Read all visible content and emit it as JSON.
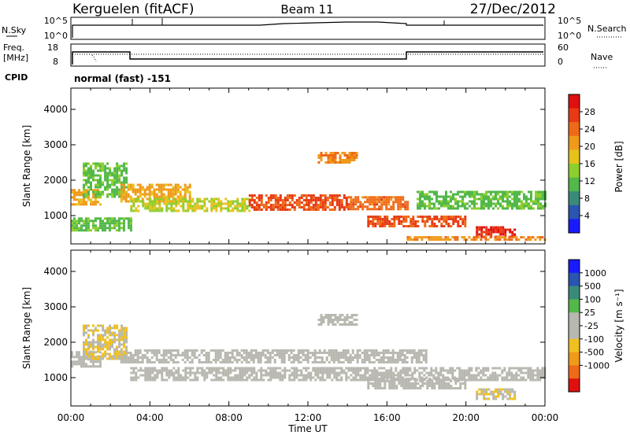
{
  "header": {
    "station": "Kerguelen (fitACF)",
    "beam": "Beam 11",
    "date": "27/Dec/2012"
  },
  "top_panel": {
    "left_label": "N.Sky",
    "right_label": "N.Search",
    "left_ticks": [
      "10^5",
      "10^0"
    ],
    "right_ticks": [
      "10^5",
      "10^0"
    ]
  },
  "freq_panel": {
    "left_label_1": "Freq.",
    "left_label_2": "[MHz]",
    "right_label": "Nave",
    "left_ticks": [
      "18",
      "8"
    ],
    "right_ticks": [
      "60",
      "0"
    ],
    "cpid_label": "CPID",
    "cpid_text": "normal (fast) -151"
  },
  "x_axis": {
    "label": "Time UT",
    "ticks": [
      "00:00",
      "04:00",
      "08:00",
      "12:00",
      "16:00",
      "20:00",
      "00:00"
    ]
  },
  "power_panel": {
    "ylabel": "Slant Range [km]",
    "yticks": [
      "1000",
      "2000",
      "3000",
      "4000"
    ],
    "colorbar_label": "Power [dB]",
    "colorbar_ticks": [
      "4",
      "8",
      "12",
      "16",
      "20",
      "24",
      "28"
    ],
    "colors": [
      "#1a1aff",
      "#2a55b0",
      "#3a8a7a",
      "#52b84a",
      "#8ccf2e",
      "#e6c21a",
      "#f09a1a",
      "#ee6a18",
      "#e83a14",
      "#e01010"
    ]
  },
  "velocity_panel": {
    "ylabel": "Slant Range [km]",
    "yticks": [
      "1000",
      "2000",
      "3000",
      "4000"
    ],
    "colorbar_label": "Velocity [m s⁻¹]",
    "colorbar_ticks": [
      "1000",
      "500",
      "100",
      "25",
      "-25",
      "-100",
      "-500",
      "-1000"
    ],
    "colors": [
      "#1a1aff",
      "#2a55b0",
      "#3a8a7a",
      "#52b84a",
      "#b8b8b0",
      "#b8b8b0",
      "#f0c020",
      "#f09a1a",
      "#ee6a18",
      "#e01010"
    ]
  },
  "chart_data": [
    {
      "type": "heatmap",
      "title": "Power",
      "xlabel": "Time UT",
      "ylabel": "Slant Range [km]",
      "xlim": [
        0,
        24
      ],
      "ylim": [
        200,
        4600
      ],
      "clim": [
        0,
        32
      ],
      "regions": [
        {
          "t0": 0.0,
          "t1": 1.5,
          "r0": 1300,
          "r1": 1750,
          "v": 20
        },
        {
          "t0": 0.6,
          "t1": 2.8,
          "r0": 1500,
          "r1": 2500,
          "v": 12
        },
        {
          "t0": 0.0,
          "t1": 3.0,
          "r0": 600,
          "r1": 950,
          "v": 12
        },
        {
          "t0": 2.5,
          "t1": 6.0,
          "r0": 1400,
          "r1": 1900,
          "v": 20
        },
        {
          "t0": 3.0,
          "t1": 9.0,
          "r0": 1100,
          "r1": 1500,
          "v": 16
        },
        {
          "t0": 9.0,
          "t1": 14.0,
          "r0": 1150,
          "r1": 1600,
          "v": 26
        },
        {
          "t0": 14.0,
          "t1": 17.0,
          "r0": 1200,
          "r1": 1550,
          "v": 24
        },
        {
          "t0": 12.5,
          "t1": 14.5,
          "r0": 2500,
          "r1": 2800,
          "v": 22
        },
        {
          "t0": 15.0,
          "t1": 20.0,
          "r0": 700,
          "r1": 1000,
          "v": 26
        },
        {
          "t0": 20.5,
          "t1": 22.5,
          "r0": 400,
          "r1": 700,
          "v": 29
        },
        {
          "t0": 17.5,
          "t1": 24.0,
          "r0": 1200,
          "r1": 1700,
          "v": 12
        },
        {
          "t0": 17.0,
          "t1": 24.0,
          "r0": 300,
          "r1": 420,
          "v": 22
        }
      ]
    },
    {
      "type": "heatmap",
      "title": "Velocity",
      "xlabel": "Time UT",
      "ylabel": "Slant Range [km]",
      "xlim": [
        0,
        24
      ],
      "ylim": [
        200,
        4600
      ],
      "clim": [
        -1000,
        1000
      ],
      "regions": [
        {
          "t0": 0.0,
          "t1": 1.5,
          "r0": 1300,
          "r1": 1750,
          "v": 0
        },
        {
          "t0": 0.6,
          "t1": 2.8,
          "r0": 1500,
          "r1": 2500,
          "v": -200
        },
        {
          "t0": 2.5,
          "t1": 18.0,
          "r0": 1400,
          "r1": 1800,
          "v": 0
        },
        {
          "t0": 3.0,
          "t1": 24.0,
          "r0": 900,
          "r1": 1300,
          "v": 0
        },
        {
          "t0": 12.5,
          "t1": 14.5,
          "r0": 2500,
          "r1": 2800,
          "v": 80
        },
        {
          "t0": 15.0,
          "t1": 20.0,
          "r0": 700,
          "r1": 1000,
          "v": 60
        },
        {
          "t0": 20.5,
          "t1": 22.5,
          "r0": 400,
          "r1": 700,
          "v": -150
        }
      ]
    }
  ]
}
